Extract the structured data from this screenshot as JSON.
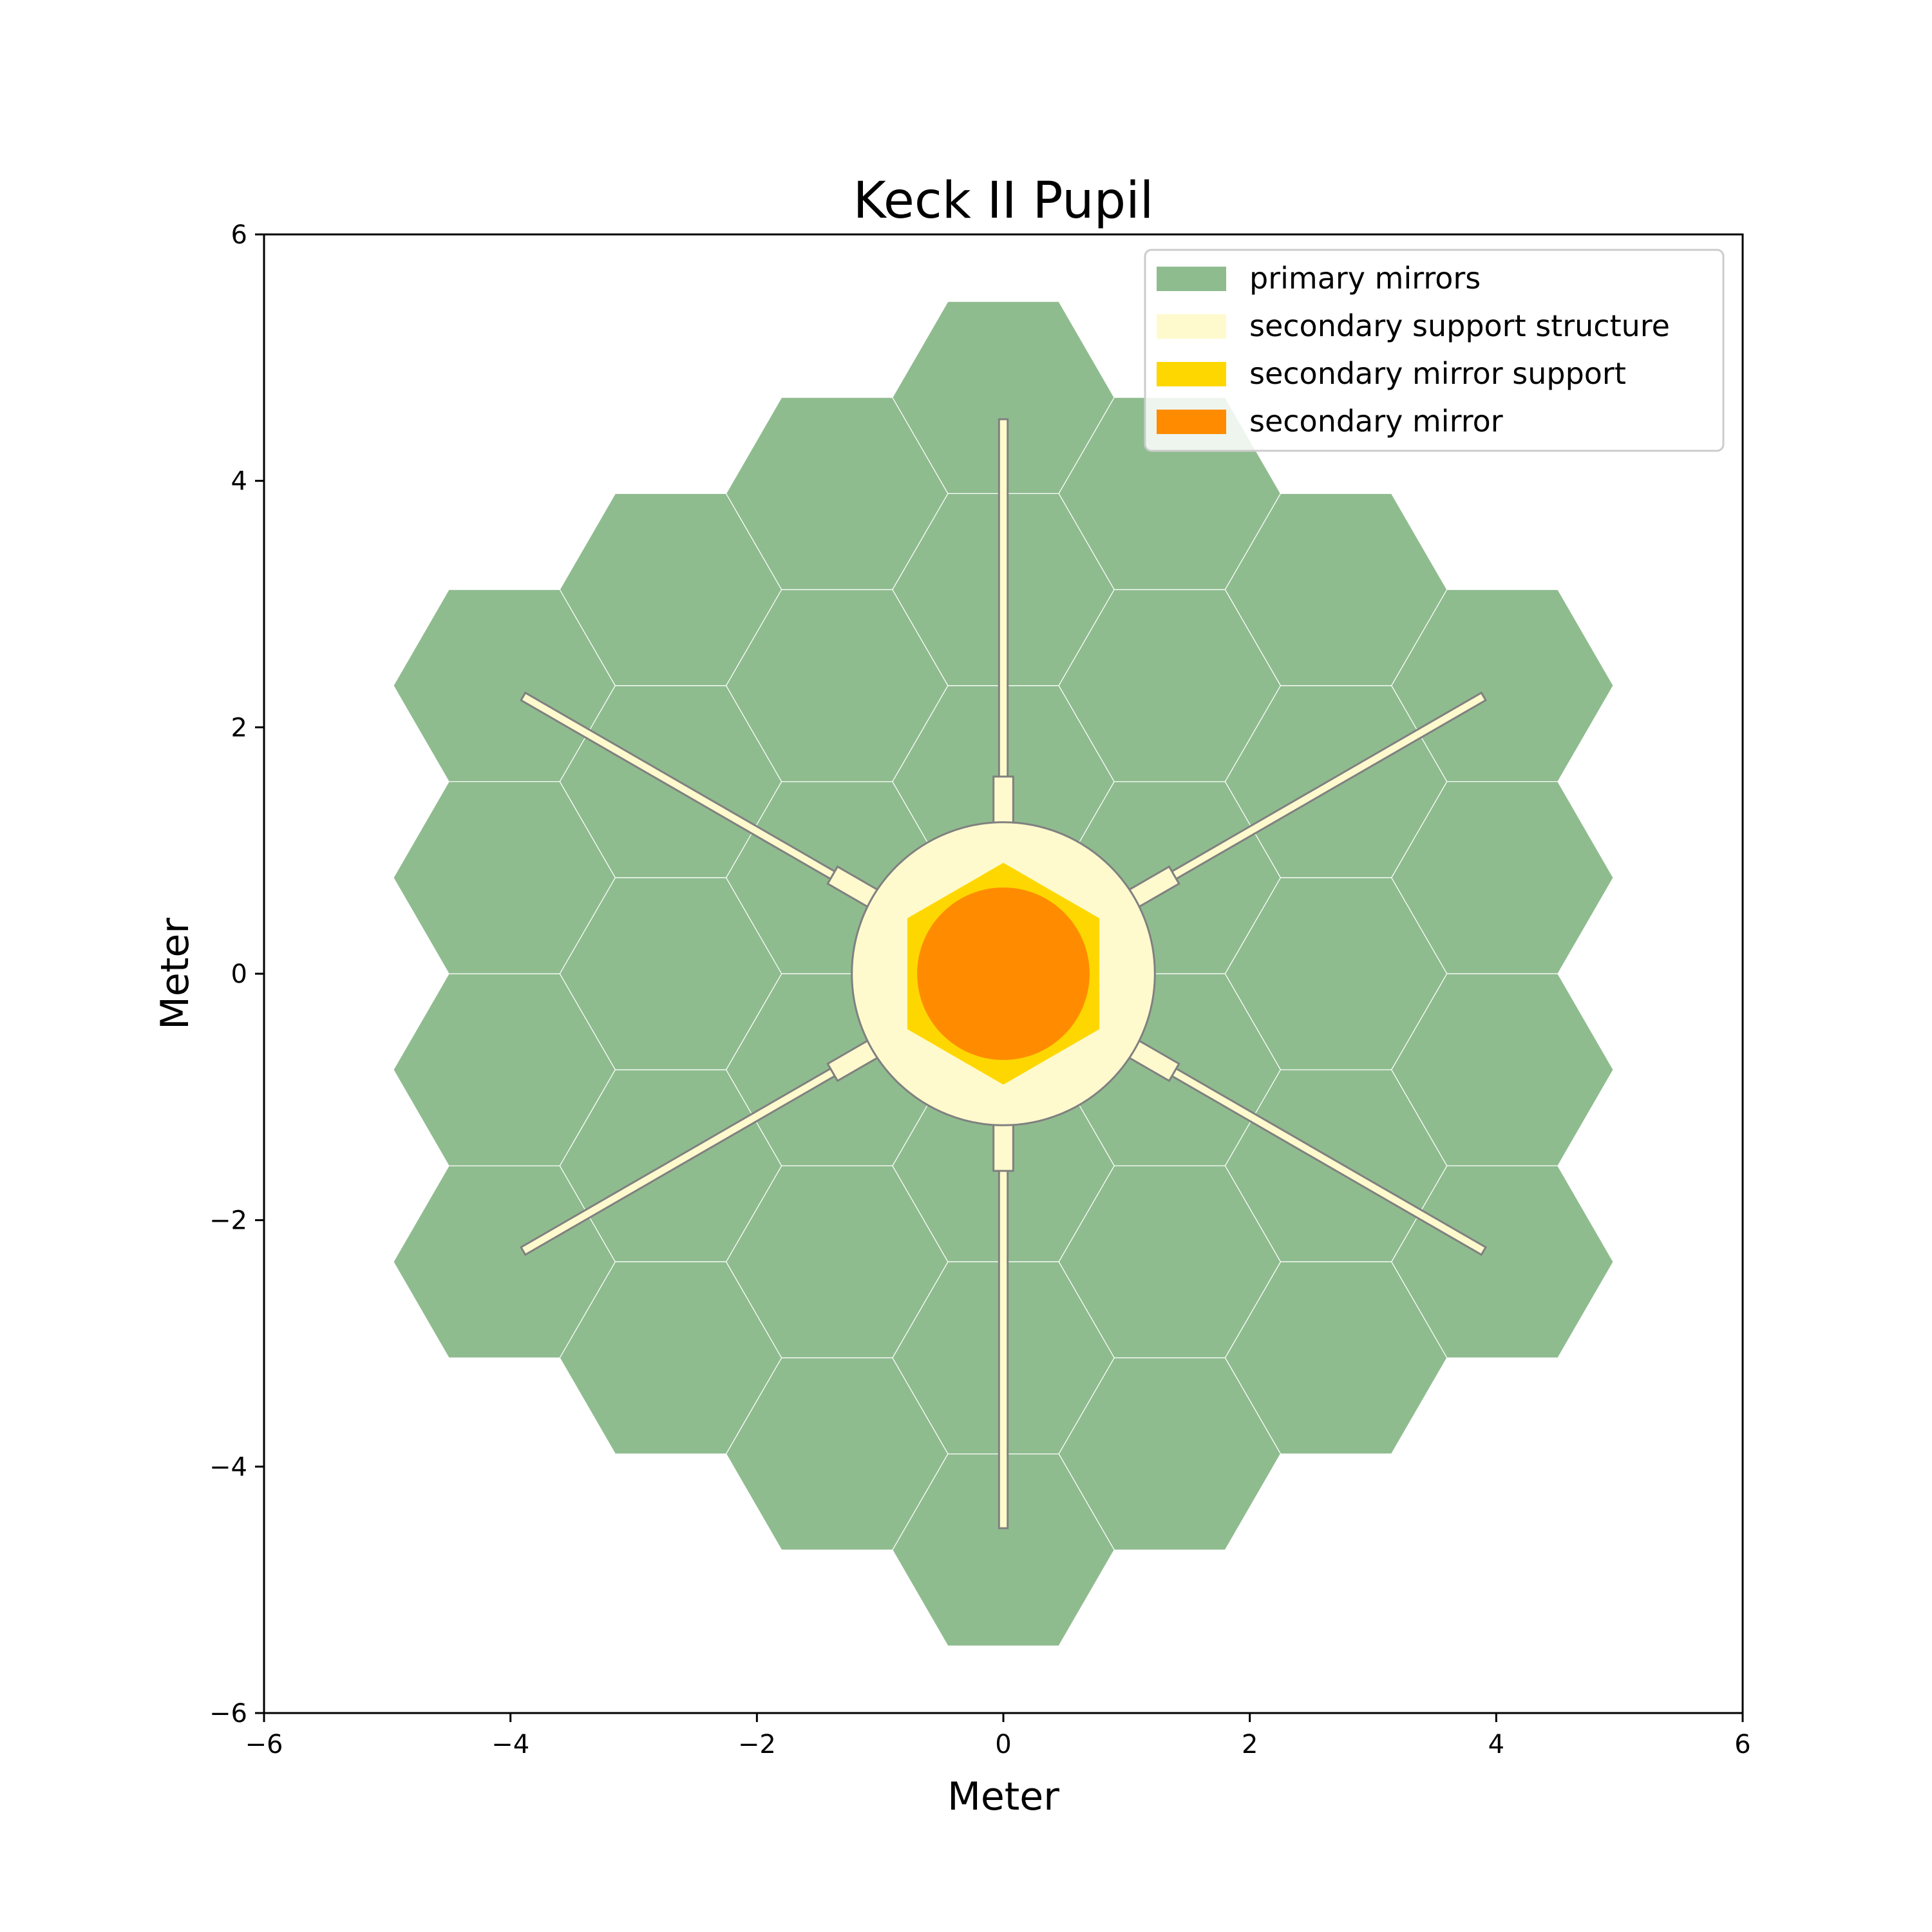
{
  "chart_data": {
    "type": "diagram",
    "title": "Keck II Pupil",
    "xlabel": "Meter",
    "ylabel": "Meter",
    "xlim": [
      -6,
      6
    ],
    "ylim": [
      -6,
      6
    ],
    "xticks": [
      -6,
      -4,
      -2,
      0,
      2,
      4,
      6
    ],
    "yticks": [
      -6,
      -4,
      -2,
      0,
      2,
      4,
      6
    ],
    "legend_position": "top-right",
    "legend": [
      {
        "label": "primary mirrors",
        "color": "#8fbc8f"
      },
      {
        "label": "secondary support structure",
        "color": "#fffacd"
      },
      {
        "label": "secondary mirror support",
        "color": "#ffd700"
      },
      {
        "label": "secondary mirror",
        "color": "#ff8c00"
      }
    ],
    "primary_mirrors": {
      "segment_count": 36,
      "segment_circumradius_m": 0.9,
      "rings": [
        1,
        2,
        3
      ],
      "color": "#8fbc8f",
      "edge_color": "#ffffff"
    },
    "secondary_support_structure": {
      "color": "#fffacd",
      "edge_color": "#808080",
      "central_ring_radius_m": 1.23,
      "spider_arm_length_m": 4.5,
      "spider_arm_angles_deg": [
        90,
        30,
        -30,
        -90,
        -150,
        150
      ]
    },
    "secondary_mirror_support": {
      "shape": "hexagon",
      "circumradius_m": 0.9,
      "color": "#ffd700"
    },
    "secondary_mirror": {
      "shape": "circle",
      "radius_m": 0.7,
      "color": "#ff8c00"
    }
  }
}
